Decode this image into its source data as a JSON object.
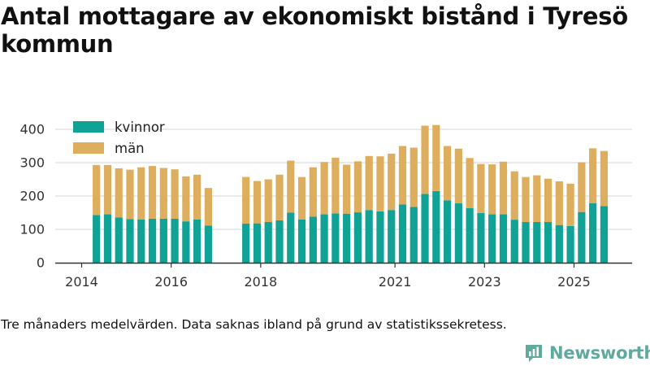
{
  "title": "Antal mottagare av ekonomiskt bistånd i Tyresö kommun",
  "caption": "Tre månaders medelvärden. Data saknas ibland på grund av statistikssekretess.",
  "brand": "Newsworthy",
  "colors": {
    "kvinnor": "#0fa295",
    "man": "#ddae5d",
    "grid": "#dddddd",
    "axis": "#333333",
    "brand": "#5fa99f"
  },
  "chart_data": {
    "type": "bar",
    "stacked": true,
    "ylim": [
      0,
      420
    ],
    "yticks": [
      0,
      100,
      200,
      300,
      400
    ],
    "xlim": [
      2013.6,
      2026.3
    ],
    "xticks": [
      2014,
      2016,
      2018,
      2021,
      2023,
      2025
    ],
    "xtick_labels": [
      "2014",
      "2016",
      "2018",
      "2021",
      "2023",
      "2025"
    ],
    "legend": [
      {
        "key": "kvinnor",
        "label": "kvinnor"
      },
      {
        "key": "man",
        "label": "män"
      }
    ],
    "legend_position": "top-left",
    "x": [
      2014.33,
      2014.58,
      2014.83,
      2015.08,
      2015.33,
      2015.58,
      2015.83,
      2016.08,
      2016.33,
      2016.58,
      2016.83,
      2017.67,
      2017.92,
      2018.17,
      2018.42,
      2018.67,
      2018.92,
      2019.17,
      2019.42,
      2019.67,
      2019.92,
      2020.17,
      2020.42,
      2020.67,
      2020.92,
      2021.17,
      2021.42,
      2021.67,
      2021.92,
      2022.17,
      2022.42,
      2022.67,
      2022.92,
      2023.17,
      2023.42,
      2023.67,
      2023.92,
      2024.17,
      2024.42,
      2024.67,
      2024.92,
      2025.17,
      2025.42,
      2025.67
    ],
    "series": [
      {
        "name": "kvinnor",
        "values": [
          143,
          145,
          136,
          131,
          130,
          132,
          132,
          132,
          124,
          130,
          111,
          117,
          118,
          122,
          127,
          150,
          130,
          138,
          145,
          148,
          147,
          151,
          158,
          154,
          158,
          175,
          167,
          206,
          215,
          187,
          178,
          164,
          149,
          145,
          145,
          129,
          122,
          122,
          122,
          113,
          110,
          152,
          178,
          170
        ]
      },
      {
        "name": "män",
        "values": [
          150,
          148,
          147,
          148,
          156,
          158,
          152,
          148,
          135,
          134,
          113,
          140,
          127,
          128,
          137,
          156,
          127,
          148,
          157,
          167,
          147,
          153,
          162,
          165,
          169,
          175,
          178,
          205,
          198,
          163,
          164,
          150,
          147,
          150,
          158,
          145,
          135,
          140,
          130,
          131,
          127,
          149,
          165,
          165
        ]
      }
    ]
  }
}
